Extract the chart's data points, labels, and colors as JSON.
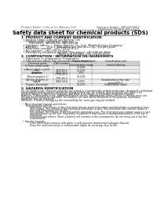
{
  "title": "Safety data sheet for chemical products (SDS)",
  "header_left": "Product Name: Lithium Ion Battery Cell",
  "header_right_line1": "Substance Number: SBR-048-00010",
  "header_right_line2": "Established / Revision: Dec.7.2016",
  "section1_title": "1. PRODUCT AND COMPANY IDENTIFICATION",
  "section1_lines": [
    "  • Product name: Lithium Ion Battery Cell",
    "  • Product code: Cylindrical-type cell",
    "         INR18650J, INR18650L, INR18650A",
    "  • Company name:      Sanyo Electric Co., Ltd.  Mobile Energy Company",
    "  • Address:           202-1  Kamitakanori, Sumoto-City, Hyogo, Japan",
    "  • Telephone number:  +81-799-26-4111",
    "  • Fax number:  +81-799-26-4123",
    "  • Emergency telephone number (Weekdays) +81-799-26-3662"
  ],
  "section1_extra": "                                         (Night and holiday) +81-799-26-4101",
  "section2_title": "2. COMPOSITION / INFORMATION ON INGREDIENTS",
  "section2_sub": "  • Substance or preparation: Preparation",
  "section2_sub2": "  • Information about the chemical nature of product:",
  "table_headers": [
    "Chemical name",
    "CAS number",
    "Concentration /\nConcentration range",
    "Classification and\nhazard labeling"
  ],
  "table_rows": [
    [
      "Lithium cobalt oxide\n(LiMnxCoyNi(1-x-y)O2)",
      "-",
      "30-60%",
      "-"
    ],
    [
      "Iron",
      "7439-89-6",
      "15-25%",
      "-"
    ],
    [
      "Aluminum",
      "7429-90-5",
      "2-5%",
      "-"
    ],
    [
      "Graphite\n(Mixed graphite-1)\n(All the graphite-1)",
      "77782-42-5\n7782-44-0",
      "10-20%",
      "-"
    ],
    [
      "Copper",
      "7440-50-8",
      "5-15%",
      "Sensitization of the skin\ngroup R42 2"
    ],
    [
      "Organic electrolyte",
      "-",
      "10-25%",
      "Inflammable liquid"
    ]
  ],
  "section3_title": "3. HAZARDS IDENTIFICATION",
  "section3_text": [
    "For this battery cell, chemical materials are stored in a hermetically sealed metal case, designed to withstand",
    "temperatures during normal operations during normal use. As a result, during normal use, there is no",
    "physical danger of ignition or explosion and there is no danger of hazardous materials leakage.",
    "However, if exposed to a fire, added mechanical shocks, decomposed, series electric current by miss-use,",
    "the gas inside cannot be operated. The battery cell case will be breached of fire-portions. hazardous",
    "materials may be released.",
    "Moreover, if heated strongly by the surrounding fire, somt gas may be emitted.",
    "",
    "  • Most important hazard and effects:",
    "      Human health effects:",
    "           Inhalation: The release of the electrolyte has an anesthesia action and stimulates a respiratory tract.",
    "           Skin contact: The release of the electrolyte stimulates a skin. The electrolyte skin contact causes a",
    "           sore and stimulation on the skin.",
    "           Eye contact: The release of the electrolyte stimulates eyes. The electrolyte eye contact causes a sore",
    "           and stimulation on the eye. Especially, a substance that causes a strong inflammation of the eye is",
    "           contained.",
    "           Environmental effects: Since a battery cell remains in the environment, do not throw out it into the",
    "           environment.",
    "",
    "  • Specific hazards:",
    "           If the electrolyte contacts with water, it will generate detrimental hydrogen fluoride.",
    "           Since the used electrolyte is inflammable liquid, do not bring close to fire."
  ],
  "bg_color": "#ffffff",
  "text_color": "#1a1a1a",
  "title_color": "#000000",
  "section_title_color": "#000000",
  "table_border_color": "#888888",
  "table_header_bg": "#d0d0d0",
  "table_row_bg1": "#f0f0f0",
  "table_row_bg2": "#ffffff",
  "header_line_color": "#555555",
  "header_text_color": "#555555"
}
